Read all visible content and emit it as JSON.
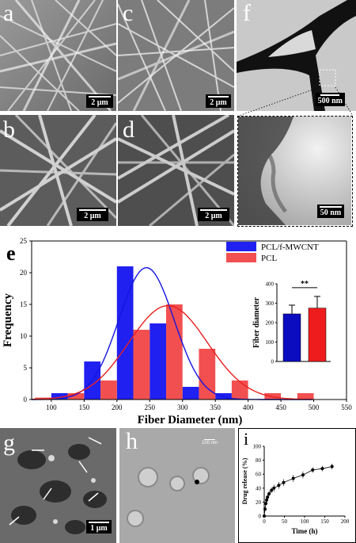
{
  "panels": {
    "a": {
      "label": "a",
      "scale": "2 μm"
    },
    "b": {
      "label": "b",
      "scale": "2 μm"
    },
    "c": {
      "label": "c",
      "scale": "2 μm"
    },
    "d": {
      "label": "d",
      "scale": "2 μm"
    },
    "f": {
      "label": "f",
      "scale_top": "500 nm",
      "scale_bottom": "50 nm"
    },
    "g": {
      "label": "g",
      "scale": "1 μm"
    },
    "h": {
      "label": "h",
      "scale": "100 nm"
    },
    "i": {
      "label": "i"
    }
  },
  "colors": {
    "blue": "#2020f0",
    "red": "#f25050"
  },
  "chart_data": [
    {
      "type": "bar",
      "panel": "e",
      "label": "e",
      "xlabel": "Fiber Diameter (nm)",
      "ylabel": "Frequency",
      "xlim": [
        70,
        550
      ],
      "ylim": [
        0,
        25
      ],
      "xticks": [
        "100",
        "150",
        "200",
        "250",
        "300",
        "350",
        "400",
        "450",
        "500",
        "550"
      ],
      "yticks": [
        "0",
        "5",
        "10",
        "15",
        "20",
        "25"
      ],
      "legend": [
        "PCL/f-MWCNT",
        "PCL"
      ],
      "series": [
        {
          "name": "PCL/f-MWCNT",
          "color": "#2020f0",
          "bins": [
            [
              100,
              125,
              1
            ],
            [
              150,
              175,
              6
            ],
            [
              200,
              225,
              21
            ],
            [
              250,
              275,
              12
            ],
            [
              300,
              325,
              2
            ],
            [
              350,
              375,
              1
            ]
          ],
          "fit_mean": 245,
          "fit_sd": 42,
          "fit_peak": 20.8
        },
        {
          "name": "PCL",
          "color": "#f25050",
          "bins": [
            [
              75,
              100,
              0.3
            ],
            [
              125,
              150,
              1
            ],
            [
              175,
              200,
              3
            ],
            [
              225,
              250,
              11
            ],
            [
              275,
              300,
              15
            ],
            [
              325,
              350,
              8
            ],
            [
              375,
              400,
              3
            ],
            [
              425,
              450,
              1
            ],
            [
              475,
              500,
              1
            ]
          ],
          "fit_mean": 278,
          "fit_sd": 60,
          "fit_peak": 14.8
        }
      ]
    },
    {
      "type": "bar",
      "panel": "e-inset",
      "ylabel": "Fiber diameter",
      "ylim": [
        0,
        400
      ],
      "yticks": [
        "0",
        "100",
        "200",
        "300",
        "400"
      ],
      "significance": "**",
      "series": [
        {
          "name": "PCL/f-MWCNT",
          "value": 245,
          "error": 45,
          "color": "#0b0bbf"
        },
        {
          "name": "PCL",
          "value": 275,
          "error": 60,
          "color": "#ee1c1c"
        }
      ]
    },
    {
      "type": "scatter",
      "panel": "i",
      "label": "i",
      "xlabel": "Time (h)",
      "ylabel": "Drug release (%)",
      "xlim": [
        0,
        200
      ],
      "ylim": [
        0,
        100
      ],
      "xticks": [
        "0",
        "50",
        "100",
        "150",
        "200"
      ],
      "yticks": [
        "0",
        "20",
        "40",
        "60",
        "80",
        "100"
      ],
      "x": [
        0,
        2,
        4,
        6,
        8,
        12,
        18,
        24,
        36,
        48,
        72,
        96,
        120,
        144,
        168
      ],
      "y": [
        0,
        10,
        18,
        23,
        27,
        32,
        37,
        40,
        44,
        48,
        54,
        59,
        66,
        68,
        71
      ],
      "err": [
        2,
        3,
        3,
        4,
        4,
        4,
        4,
        5,
        5,
        5,
        5,
        5,
        4,
        4,
        4
      ]
    }
  ]
}
